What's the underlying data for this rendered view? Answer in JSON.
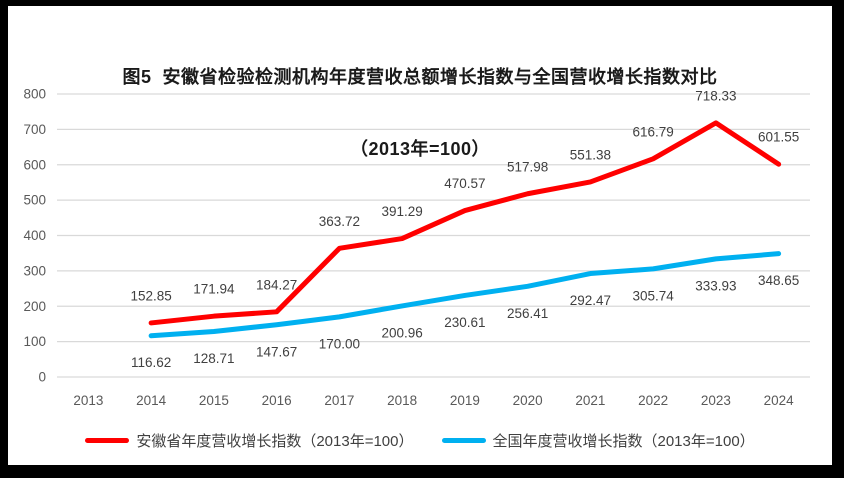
{
  "figure": {
    "title_line1": "图5  安徽省检验检测机构年度营收总额增长指数与全国营收增长指数对比",
    "title_line2": "（2013年=100）"
  },
  "chart_data": {
    "type": "line",
    "title": "图5 安徽省检验检测机构年度营收总额增长指数与全国营收增长指数对比（2013年=100）",
    "xlabel": "",
    "ylabel": "",
    "categories": [
      "2013",
      "2014",
      "2015",
      "2016",
      "2017",
      "2018",
      "2019",
      "2020",
      "2021",
      "2022",
      "2023",
      "2024"
    ],
    "series": [
      {
        "name": "安徽省年度营收增长指数（2013年=100）",
        "color": "#FF0000",
        "label_position": "above",
        "values": [
          null,
          152.85,
          171.94,
          184.27,
          363.72,
          391.29,
          470.57,
          517.98,
          551.38,
          616.79,
          718.33,
          601.55
        ],
        "labels": [
          null,
          "152.85",
          "171.94",
          "184.27",
          "363.72",
          "391.29",
          "470.57",
          "517.98",
          "551.38",
          "616.79",
          "718.33",
          "601.55"
        ]
      },
      {
        "name": "全国年度营收增长指数（2013年=100）",
        "color": "#00B0F0",
        "label_position": "below",
        "values": [
          null,
          116.62,
          128.71,
          147.67,
          170.0,
          200.96,
          230.61,
          256.41,
          292.47,
          305.74,
          333.93,
          348.65
        ],
        "labels": [
          null,
          "116.62",
          "128.71",
          "147.67",
          "170.00",
          "200.96",
          "230.61",
          "256.41",
          "292.47",
          "305.74",
          "333.93",
          "348.65"
        ]
      }
    ],
    "ylim": [
      0,
      800
    ],
    "yticks": [
      0,
      100,
      200,
      300,
      400,
      500,
      600,
      700,
      800
    ],
    "grid": true,
    "legend_position": "bottom",
    "colors": {
      "gridline": "#D9D9D9",
      "axis_text": "#595959",
      "data_label_text": "#404040",
      "series_anhui": "#FF0000",
      "series_national": "#00B0F0"
    }
  }
}
